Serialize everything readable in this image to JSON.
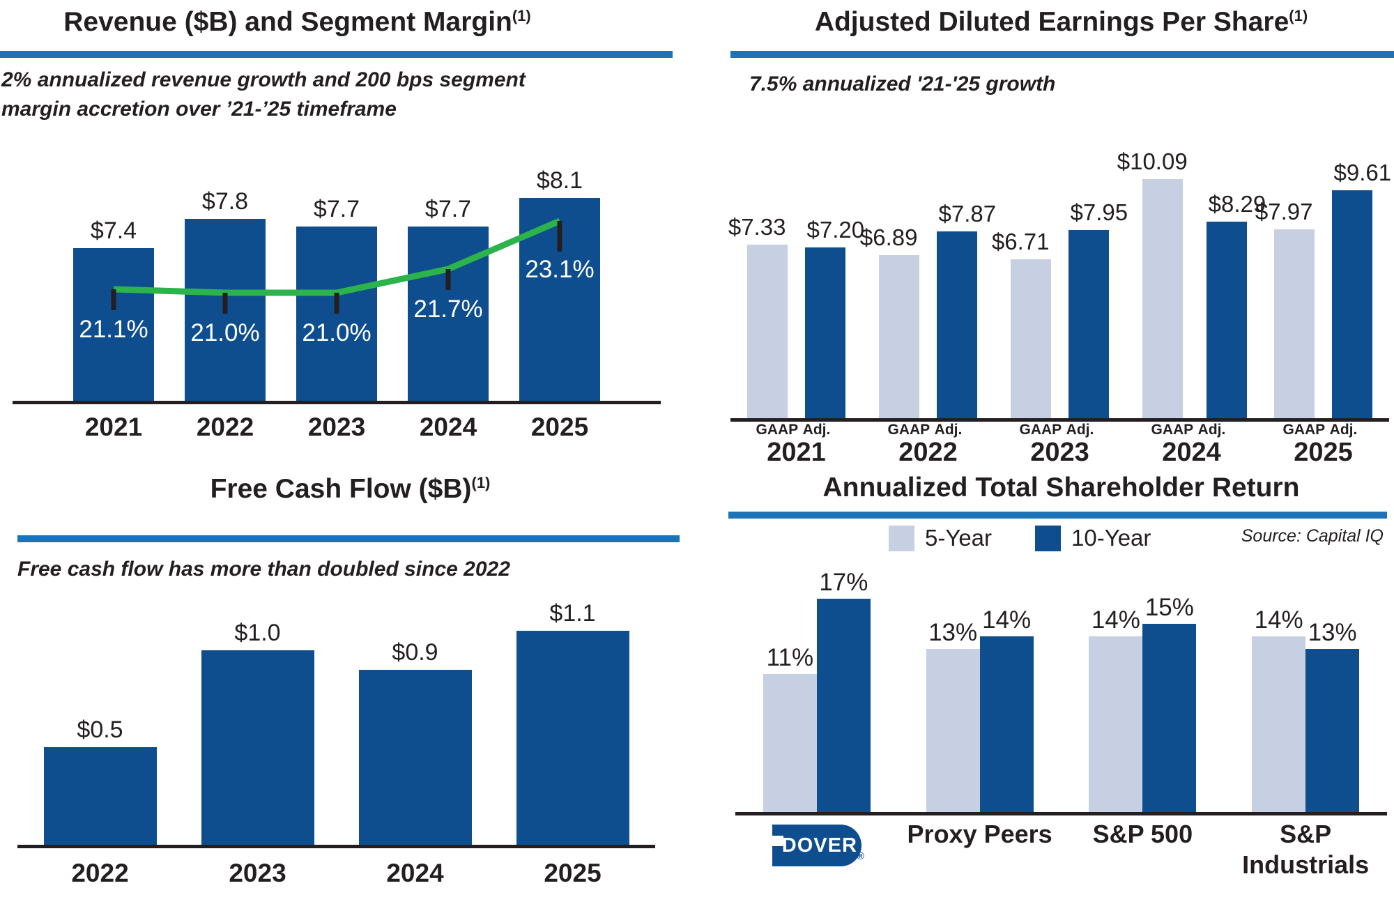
{
  "colors": {
    "bar_dark": "#0E4E8E",
    "bar_light": "#C6D0E2",
    "line_green": "#2CB34C",
    "divider_blue": "#1E73B8",
    "ink": "#231F20",
    "label_white": "#FFFFFF"
  },
  "panels": {
    "revenue": {
      "title": "Revenue ($B) and Segment Margin",
      "title_sup": "(1)",
      "subtitle": "2% annualized revenue growth and 200 bps segment margin accretion over ’21-’25 timeframe",
      "chart_data": {
        "type": "bar+line",
        "categories": [
          "2021",
          "2022",
          "2023",
          "2024",
          "2025"
        ],
        "gridlines": false,
        "series": [
          {
            "name": "Revenue ($B)",
            "type": "bar",
            "values": [
              7.4,
              7.8,
              7.7,
              7.7,
              8.1
            ],
            "labels": [
              "$7.4",
              "$7.8",
              "$7.7",
              "$7.7",
              "$8.1"
            ],
            "color": "#0E4E8E"
          },
          {
            "name": "Segment Margin",
            "type": "line",
            "values": [
              21.1,
              21.0,
              21.0,
              21.7,
              23.1
            ],
            "labels": [
              "21.1%",
              "21.0%",
              "21.0%",
              "21.7%",
              "23.1%"
            ],
            "color": "#2CB34C"
          }
        ]
      }
    },
    "eps": {
      "title": "Adjusted Diluted Earnings Per Share",
      "title_sup": "(1)",
      "subtitle": "7.5% annualized '21-'25 growth",
      "chart_data": {
        "type": "grouped_bar",
        "categories": [
          "2021",
          "2022",
          "2023",
          "2024",
          "2025"
        ],
        "group_sublabels": [
          "GAAP",
          "Adj."
        ],
        "gridlines": false,
        "series": [
          {
            "name": "GAAP",
            "values": [
              7.33,
              6.89,
              6.71,
              10.09,
              7.97
            ],
            "labels": [
              "$7.33",
              "$6.89",
              "$6.71",
              "$10.09",
              "$7.97"
            ],
            "color": "#C6D0E2"
          },
          {
            "name": "Adj.",
            "values": [
              7.2,
              7.87,
              7.95,
              8.29,
              9.61
            ],
            "labels": [
              "$7.20",
              "$7.87",
              "$7.95",
              "$8.29",
              "$9.61"
            ],
            "color": "#0E4E8E"
          }
        ]
      }
    },
    "fcf": {
      "title": "Free Cash Flow ($B)",
      "title_sup": "(1)",
      "subtitle": "Free cash flow has more than doubled since 2022",
      "chart_data": {
        "type": "bar",
        "categories": [
          "2022",
          "2023",
          "2024",
          "2025"
        ],
        "values": [
          0.5,
          1.0,
          0.9,
          1.1
        ],
        "labels": [
          "$0.5",
          "$1.0",
          "$0.9",
          "$1.1"
        ],
        "gridlines": false,
        "color": "#0E4E8E"
      }
    },
    "tsr": {
      "title": "Annualized Total Shareholder Return",
      "source": "Source: Capital IQ",
      "legend": [
        {
          "label": "5-Year",
          "color": "#C6D0E2"
        },
        {
          "label": "10-Year",
          "color": "#0E4E8E"
        }
      ],
      "legend_position": "top",
      "logo": {
        "text": "DOVER",
        "reg_mark": "®"
      },
      "chart_data": {
        "type": "grouped_bar",
        "categories": [
          "DOVER",
          "Proxy Peers",
          "S&P 500",
          "S&P Industrials"
        ],
        "gridlines": false,
        "series": [
          {
            "name": "5-Year",
            "values": [
              11,
              13,
              14,
              14
            ],
            "labels": [
              "11%",
              "13%",
              "14%",
              "14%"
            ],
            "color": "#C6D0E2"
          },
          {
            "name": "10-Year",
            "values": [
              17,
              14,
              15,
              13
            ],
            "labels": [
              "17%",
              "14%",
              "15%",
              "13%"
            ],
            "color": "#0E4E8E"
          }
        ]
      }
    }
  }
}
